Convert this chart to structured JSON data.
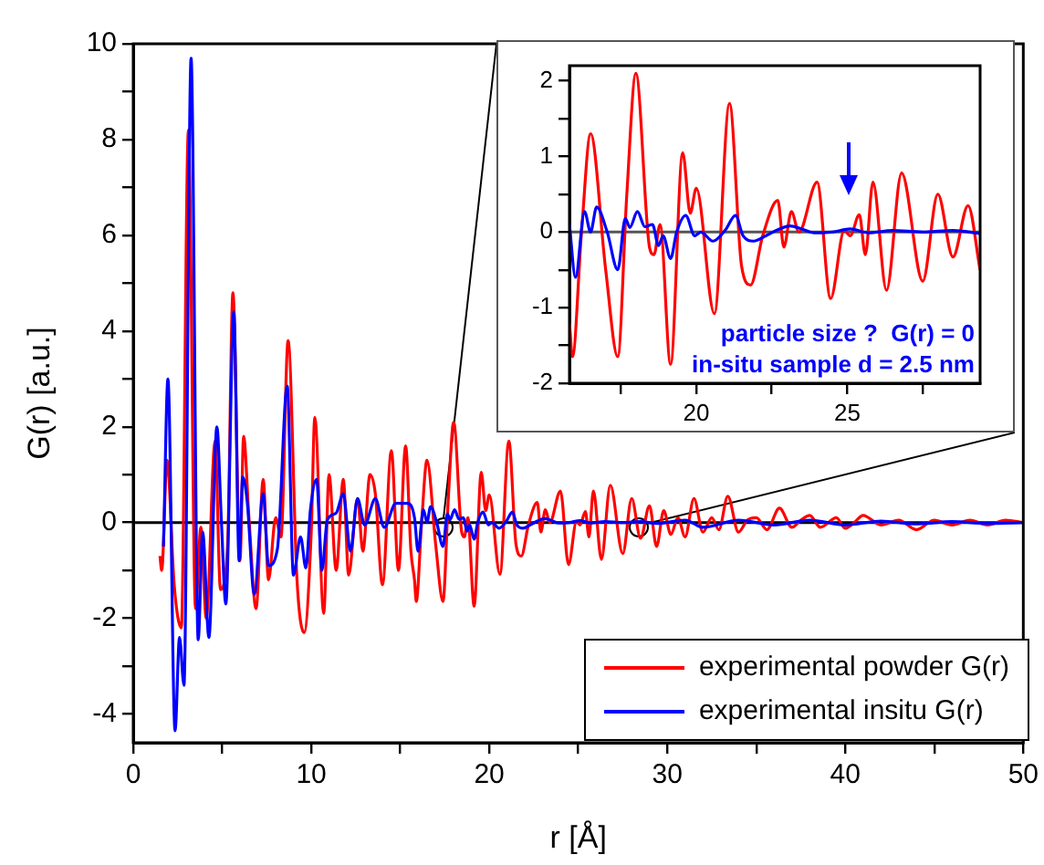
{
  "chart_data": [
    {
      "type": "line",
      "xlabel": "r [Å]",
      "ylabel": "G(r) [a.u.]",
      "xlim": [
        0,
        50
      ],
      "ylim": [
        -4.6,
        10
      ],
      "xticks": [
        0,
        {
          "value": 5,
          "label": null
        },
        10,
        {
          "value": 15,
          "label": null
        },
        20,
        {
          "value": 25,
          "label": null
        },
        30,
        {
          "value": 35,
          "label": null
        },
        40,
        {
          "value": 45,
          "label": null
        },
        50
      ],
      "yticks": [
        -4,
        {
          "value": -3,
          "label": null
        },
        -2,
        {
          "value": -1,
          "label": null
        },
        0,
        {
          "value": 1,
          "label": null
        },
        2,
        {
          "value": 3,
          "label": null
        },
        4,
        {
          "value": 5,
          "label": null
        },
        6,
        {
          "value": 7,
          "label": null
        },
        8,
        {
          "value": 9,
          "label": null
        },
        10
      ],
      "grid": false,
      "legend": "bottom right",
      "marker": "none",
      "line_style": "solid",
      "ref_lines": [
        {
          "axis": "y",
          "value": 0,
          "color": "#000000"
        }
      ],
      "series": [
        {
          "name": "experimental powder G(r)",
          "color": "#ff0000",
          "x": [
            1.5,
            1.6,
            1.9,
            2.3,
            2.7,
            3.1,
            3.5,
            3.8,
            4.1,
            4.6,
            4.9,
            5.3,
            5.6,
            6.0,
            6.2,
            6.5,
            6.9,
            7.3,
            7.6,
            8.0,
            8.3,
            8.7,
            9.2,
            9.6,
            10.0,
            10.2,
            10.7,
            11.0,
            11.4,
            11.8,
            12.1,
            12.6,
            12.9,
            13.3,
            13.6,
            14.0,
            14.5,
            14.9,
            15.3,
            15.6,
            15.8,
            15.9,
            16.2,
            16.5,
            17.0,
            17.4,
            17.7,
            18.0,
            18.45,
            18.6,
            18.8,
            19.15,
            19.55,
            19.8,
            20.0,
            20.6,
            21.1,
            21.5,
            21.8,
            22.2,
            22.7,
            22.9,
            23.15,
            23.4,
            24.0,
            24.45,
            24.9,
            25.1,
            25.4,
            25.6,
            25.85,
            26.3,
            26.8,
            27.5,
            28.0,
            28.5,
            29.0,
            29.4,
            29.8,
            30.2,
            30.6,
            31.0,
            31.5,
            32.0,
            32.5,
            32.9,
            33.4,
            34.0,
            34.5,
            35.0,
            35.6,
            36.3,
            37.0,
            37.5,
            38.0,
            38.6,
            39.5,
            40.0,
            40.5,
            41.0,
            42.0,
            43.0,
            44.0,
            45.0,
            46.0,
            47.0,
            48.0,
            49.0,
            50.0
          ],
          "values": [
            -0.7,
            -1.0,
            1.3,
            -1.3,
            -2.2,
            8.2,
            -1.8,
            -0.1,
            -2.0,
            1.7,
            -1.4,
            -0.5,
            4.8,
            -0.8,
            1.8,
            0.1,
            -1.8,
            0.9,
            -1.2,
            0.1,
            -0.3,
            3.8,
            -1.2,
            -2.3,
            -0.2,
            2.2,
            -1.9,
            1.0,
            -1.0,
            0.9,
            -1.1,
            0.5,
            -0.6,
            1.0,
            0.6,
            -1.3,
            1.5,
            -1.0,
            1.6,
            -0.6,
            -1.2,
            -1.65,
            0,
            1.3,
            -0.5,
            -1.65,
            0.5,
            2.1,
            -0.2,
            -0.3,
            0.1,
            -1.75,
            1.05,
            0.25,
            0.58,
            -1.08,
            1.7,
            -0.45,
            -0.7,
            -0.05,
            0.42,
            -0.2,
            0.27,
            0,
            0.66,
            -0.88,
            0.02,
            -0.05,
            0.23,
            -0.3,
            0.66,
            -0.77,
            0.78,
            -0.65,
            0.5,
            -0.33,
            0.35,
            -0.5,
            0.25,
            -0.25,
            0.1,
            -0.3,
            0.5,
            -0.2,
            0.1,
            -0.15,
            0.55,
            -0.2,
            0.05,
            0.1,
            -0.15,
            0.3,
            -0.1,
            0.05,
            0.15,
            -0.1,
            0.1,
            -0.12,
            0,
            0.15,
            -0.05,
            0.05,
            -0.15,
            0.05,
            -0.05,
            0.05,
            -0.05,
            0.05,
            0
          ]
        },
        {
          "name": "experimental insitu G(r)",
          "color": "#0000ff",
          "x": [
            1.7,
            1.95,
            2.35,
            2.6,
            2.85,
            3.25,
            3.65,
            3.9,
            4.25,
            4.7,
            4.95,
            5.2,
            5.65,
            5.95,
            6.15,
            6.4,
            6.8,
            7.3,
            7.6,
            8.1,
            8.65,
            9.0,
            9.4,
            9.7,
            9.95,
            10.3,
            10.6,
            10.9,
            11.4,
            11.8,
            12.2,
            12.6,
            13.0,
            13.6,
            14.1,
            14.75,
            15.4,
            15.8,
            16.0,
            16.3,
            16.5,
            16.7,
            17.05,
            17.4,
            17.65,
            17.8,
            18.05,
            18.3,
            18.55,
            18.75,
            18.9,
            19.15,
            19.35,
            19.65,
            19.95,
            20.15,
            20.55,
            20.95,
            21.3,
            21.55,
            21.9,
            22.3,
            22.7,
            23.1,
            23.5,
            23.9,
            24.5,
            25.1,
            25.7,
            26.5,
            27.5,
            28.5,
            29.4,
            31,
            32,
            34,
            36,
            38,
            40,
            42,
            44,
            46,
            48,
            50
          ],
          "values": [
            -0.5,
            3.0,
            -4.35,
            -2.4,
            -3.4,
            9.7,
            -2.45,
            -0.2,
            -2.4,
            2.0,
            0.05,
            -1.7,
            4.4,
            -0.8,
            0.95,
            0.45,
            -1.5,
            0.6,
            -0.9,
            -0.55,
            2.85,
            -1.1,
            -0.3,
            -0.95,
            0.25,
            0.9,
            -1.0,
            0.05,
            0.2,
            0.6,
            -0.6,
            0.5,
            -0.05,
            0.5,
            -0.1,
            0.4,
            0.4,
            0.1,
            -0.6,
            0.27,
            0,
            0.33,
            0,
            -0.5,
            0.18,
            0.06,
            0.27,
            0.07,
            0.1,
            -0.18,
            -0.05,
            -0.35,
            0,
            0.22,
            -0.05,
            0,
            -0.12,
            0.02,
            0.22,
            -0.05,
            -0.12,
            -0.05,
            0.03,
            0.08,
            0.04,
            -0.01,
            0,
            0.04,
            -0.01,
            0.02,
            0,
            0.02,
            -0.02,
            0.05,
            -0.1,
            0.05,
            -0.05,
            0.05,
            -0.05,
            0.03,
            -0.03,
            0.02,
            -0.02,
            0
          ]
        }
      ]
    },
    {
      "type": "line",
      "xlim": [
        15.8,
        29.4
      ],
      "ylim": [
        -2,
        2.2
      ],
      "xticks": [
        {
          "value": 17.5,
          "label": null
        },
        20,
        {
          "value": 22.5,
          "label": null
        },
        25,
        {
          "value": 27.5,
          "label": null
        }
      ],
      "yticks": [
        -2,
        {
          "value": -1.5,
          "label": null
        },
        -1,
        {
          "value": -0.5,
          "label": null
        },
        0,
        {
          "value": 0.5,
          "label": null
        },
        1,
        {
          "value": 1.5,
          "label": null
        },
        2
      ],
      "grid": false,
      "marker": "none",
      "line_style": "solid",
      "ref_lines": [
        {
          "axis": "y",
          "value": 0,
          "color": "#555555"
        }
      ],
      "annotations": [
        "particle size ?  G(r) = 0",
        "in-situ sample d = 2.5 nm"
      ],
      "series": [
        {
          "color": "#ff0000",
          "x": [
            15.8,
            15.9,
            16.2,
            16.5,
            17.0,
            17.4,
            17.7,
            18.0,
            18.45,
            18.6,
            18.8,
            19.15,
            19.55,
            19.8,
            20.0,
            20.6,
            21.1,
            21.5,
            21.8,
            22.2,
            22.7,
            22.9,
            23.15,
            23.4,
            24.0,
            24.45,
            24.9,
            25.1,
            25.4,
            25.6,
            25.85,
            26.3,
            26.8,
            27.5,
            28.0,
            28.5,
            29.0,
            29.4
          ],
          "values": [
            -1.2,
            -1.65,
            0,
            1.3,
            -0.5,
            -1.65,
            0.5,
            2.1,
            -0.2,
            -0.3,
            0.1,
            -1.75,
            1.05,
            0.25,
            0.58,
            -1.08,
            1.7,
            -0.45,
            -0.7,
            -0.05,
            0.42,
            -0.2,
            0.27,
            0,
            0.66,
            -0.88,
            0.02,
            -0.05,
            0.23,
            -0.3,
            0.66,
            -0.77,
            0.78,
            -0.65,
            0.5,
            -0.33,
            0.35,
            -0.5
          ]
        },
        {
          "color": "#0000ff",
          "x": [
            15.8,
            16.0,
            16.3,
            16.5,
            16.7,
            17.05,
            17.4,
            17.65,
            17.8,
            18.05,
            18.3,
            18.55,
            18.75,
            18.9,
            19.15,
            19.35,
            19.65,
            19.95,
            20.15,
            20.55,
            20.95,
            21.3,
            21.55,
            21.9,
            22.3,
            22.7,
            23.1,
            23.5,
            23.9,
            24.5,
            25.1,
            25.7,
            26.5,
            27.5,
            28.5,
            29.4
          ],
          "values": [
            0.1,
            -0.6,
            0.27,
            0,
            0.33,
            0,
            -0.5,
            0.18,
            0.06,
            0.27,
            0.07,
            0.1,
            -0.18,
            -0.05,
            -0.35,
            0,
            0.22,
            -0.05,
            0,
            -0.12,
            0.02,
            0.22,
            -0.05,
            -0.12,
            -0.05,
            0.03,
            0.08,
            0.04,
            -0.01,
            0,
            0.04,
            -0.01,
            0.02,
            0,
            0.02,
            -0.02
          ]
        }
      ]
    }
  ]
}
